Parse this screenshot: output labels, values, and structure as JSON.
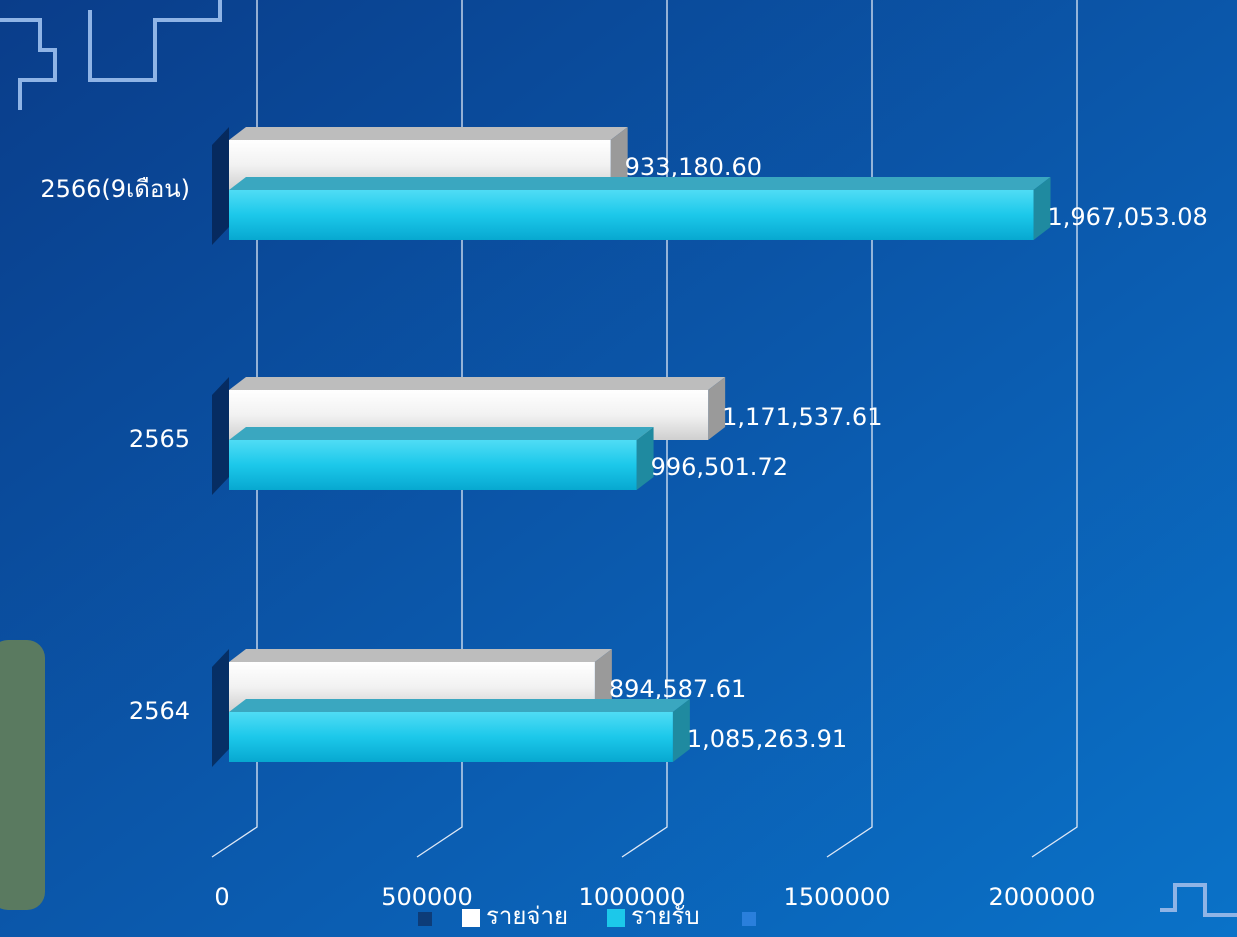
{
  "chart_data": {
    "type": "bar",
    "orientation": "horizontal",
    "categories": [
      "2564",
      "2565",
      "2566(9เดือน)"
    ],
    "series": [
      {
        "name": "รายจ่าย",
        "color": "#ffffff",
        "values": [
          894587.61,
          1171537.61,
          933180.6
        ],
        "value_labels": [
          "894,587.61",
          "1,171,537.61",
          "933,180.60"
        ]
      },
      {
        "name": "รายรับ",
        "color": "#1cc8ea",
        "values": [
          1085263.91,
          996501.72,
          1967053.08
        ],
        "value_labels": [
          "1,085,263.91",
          "996,501.72",
          "1,967,053.08"
        ]
      }
    ],
    "xlim": [
      0,
      2000000
    ],
    "xticks": [
      0,
      500000,
      1000000,
      1500000,
      2000000
    ],
    "grid": true
  }
}
